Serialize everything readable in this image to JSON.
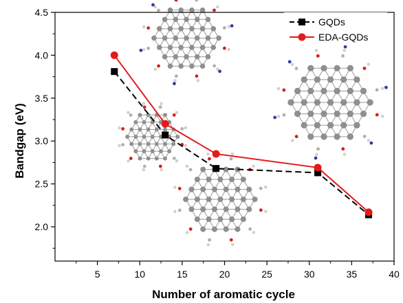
{
  "chart_data": {
    "type": "line",
    "xlabel": "Number of aromatic cycle",
    "ylabel": "Bandgap (eV)",
    "xlim": [
      0,
      40
    ],
    "ylim": [
      1.6,
      4.5
    ],
    "x_ticks": [
      5,
      10,
      15,
      20,
      25,
      30,
      35,
      40
    ],
    "y_ticks": [
      2.0,
      2.5,
      3.0,
      3.5,
      4.0,
      4.5
    ],
    "grid": false,
    "legend_position": "top-right",
    "series": [
      {
        "name": "GQDs",
        "color": "#000000",
        "line_style": "dashed",
        "marker": "square",
        "x": [
          7,
          13,
          19,
          31,
          37
        ],
        "y": [
          3.81,
          3.07,
          2.68,
          2.63,
          2.14
        ]
      },
      {
        "name": "EDA-GQDs",
        "color": "#e31a1c",
        "line_style": "solid",
        "marker": "circle",
        "x": [
          7,
          13,
          19,
          31,
          37
        ],
        "y": [
          4.0,
          3.2,
          2.85,
          2.69,
          2.17
        ]
      }
    ],
    "insets": [
      {
        "name": "small-gqd-molecule-icon",
        "x": 11.5,
        "y": 3.05,
        "r": 0.35,
        "decorated": false
      },
      {
        "name": "eda-gqd-molecule-top-icon",
        "x": 15.5,
        "y": 4.2,
        "r": 0.45,
        "decorated": true
      },
      {
        "name": "large-gqd-molecule-bottom-icon",
        "x": 19.5,
        "y": 2.32,
        "r": 0.48,
        "decorated": false
      },
      {
        "name": "large-eda-gqd-molecule-right-icon",
        "x": 32.5,
        "y": 3.45,
        "r": 0.55,
        "decorated": true
      }
    ]
  }
}
